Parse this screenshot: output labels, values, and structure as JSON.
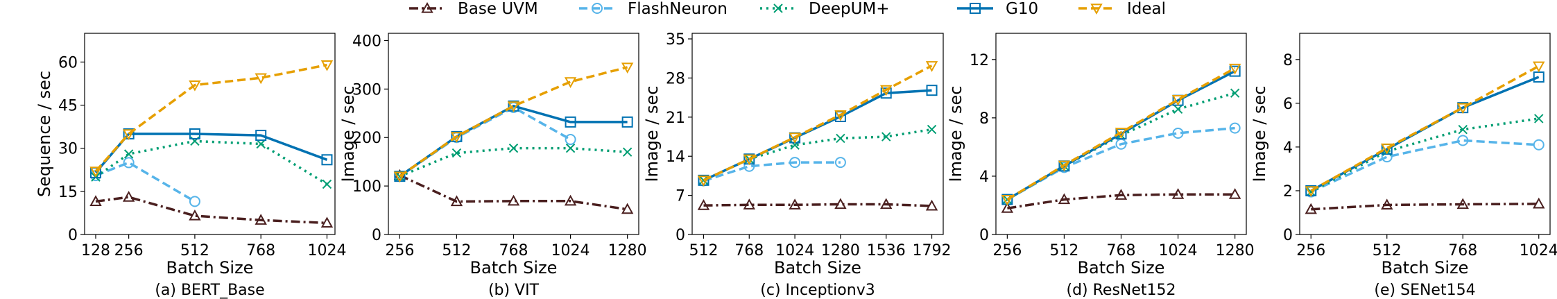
{
  "legend": [
    {
      "name": "Base UVM",
      "color": "#4a1f1f",
      "dash": "dashdot",
      "marker": "triangle-up"
    },
    {
      "name": "FlashNeuron",
      "color": "#56b4e9",
      "dash": "dashed",
      "marker": "circle"
    },
    {
      "name": "DeepUM+",
      "color": "#009e73",
      "dash": "dotted",
      "marker": "x"
    },
    {
      "name": "G10",
      "color": "#0072b2",
      "dash": "solid",
      "marker": "square"
    },
    {
      "name": "Ideal",
      "color": "#e69f00",
      "dash": "dashed",
      "marker": "triangle-down"
    }
  ],
  "chart_data": [
    {
      "type": "line",
      "caption": "(a) BERT_Base",
      "xlabel": "Batch Size",
      "ylabel": "Sequence / sec",
      "xlim": [
        85,
        1055
      ],
      "ylim": [
        0,
        70
      ],
      "xticks": [
        128,
        256,
        512,
        768,
        1024
      ],
      "yticks": [
        0,
        15,
        30,
        45,
        60
      ],
      "grid": false,
      "series": [
        {
          "name": "Base UVM",
          "x": [
            128,
            256,
            512,
            768,
            1024
          ],
          "y": [
            11.5,
            13,
            6.5,
            5,
            4
          ]
        },
        {
          "name": "FlashNeuron",
          "x": [
            128,
            256,
            512
          ],
          "y": [
            20.5,
            25,
            11.5
          ]
        },
        {
          "name": "DeepUM+",
          "x": [
            128,
            256,
            512,
            768,
            1024
          ],
          "y": [
            20,
            28,
            32.5,
            31.5,
            17.5
          ]
        },
        {
          "name": "G10",
          "x": [
            128,
            256,
            512,
            768,
            1024
          ],
          "y": [
            21.5,
            35,
            35,
            34.5,
            26
          ]
        },
        {
          "name": "Ideal",
          "x": [
            128,
            256,
            512,
            768,
            1024
          ],
          "y": [
            22,
            35,
            52,
            54.5,
            59
          ]
        }
      ]
    },
    {
      "type": "line",
      "caption": "(b) VIT",
      "xlabel": "Batch Size",
      "ylabel": "Image / sec",
      "xlim": [
        205,
        1331
      ],
      "ylim": [
        0,
        415
      ],
      "xticks": [
        256,
        512,
        768,
        1024,
        1280
      ],
      "yticks": [
        0,
        100,
        200,
        300,
        400
      ],
      "grid": false,
      "series": [
        {
          "name": "Base UVM",
          "x": [
            256,
            512,
            768,
            1024,
            1280
          ],
          "y": [
            122,
            68,
            69,
            69,
            52
          ]
        },
        {
          "name": "FlashNeuron",
          "x": [
            256,
            512,
            768,
            1024
          ],
          "y": [
            120,
            200,
            262,
            196
          ]
        },
        {
          "name": "DeepUM+",
          "x": [
            256,
            512,
            768,
            1024,
            1280
          ],
          "y": [
            120,
            168,
            178,
            178,
            170
          ]
        },
        {
          "name": "G10",
          "x": [
            256,
            512,
            768,
            1024,
            1280
          ],
          "y": [
            120,
            202,
            265,
            232,
            232
          ]
        },
        {
          "name": "Ideal",
          "x": [
            256,
            512,
            768,
            1024,
            1280
          ],
          "y": [
            120,
            202,
            265,
            315,
            345
          ]
        }
      ]
    },
    {
      "type": "line",
      "caption": "(c) Inceptionv3",
      "xlabel": "Batch Size",
      "ylabel": "Image / sec",
      "xlim": [
        448,
        1856
      ],
      "ylim": [
        0,
        36
      ],
      "xticks": [
        512,
        768,
        1024,
        1280,
        1536,
        1792
      ],
      "yticks": [
        0,
        7,
        14,
        21,
        28,
        35
      ],
      "grid": false,
      "series": [
        {
          "name": "Base UVM",
          "x": [
            512,
            768,
            1024,
            1280,
            1536,
            1792
          ],
          "y": [
            5.2,
            5.3,
            5.3,
            5.4,
            5.4,
            5.1
          ]
        },
        {
          "name": "FlashNeuron",
          "x": [
            512,
            768,
            1024,
            1280
          ],
          "y": [
            9.6,
            12.2,
            12.9,
            12.9
          ]
        },
        {
          "name": "DeepUM+",
          "x": [
            512,
            768,
            1024,
            1280,
            1536,
            1792
          ],
          "y": [
            9.7,
            13.5,
            16,
            17.2,
            17.5,
            18.8
          ]
        },
        {
          "name": "G10",
          "x": [
            512,
            768,
            1024,
            1280,
            1536,
            1792
          ],
          "y": [
            9.7,
            13.5,
            17.3,
            21.1,
            25.3,
            25.8
          ]
        },
        {
          "name": "Ideal",
          "x": [
            512,
            768,
            1024,
            1280,
            1536,
            1792
          ],
          "y": [
            9.7,
            13.5,
            17.4,
            21.4,
            25.9,
            30.2
          ]
        }
      ]
    },
    {
      "type": "line",
      "caption": "(d) ResNet152",
      "xlabel": "Batch Size",
      "ylabel": "Image / sec",
      "xlim": [
        205,
        1331
      ],
      "ylim": [
        0,
        13.8
      ],
      "xticks": [
        256,
        512,
        768,
        1024,
        1280
      ],
      "yticks": [
        0,
        4,
        8,
        12
      ],
      "grid": false,
      "series": [
        {
          "name": "Base UVM",
          "x": [
            256,
            512,
            768,
            1024,
            1280
          ],
          "y": [
            1.8,
            2.4,
            2.7,
            2.75,
            2.75
          ]
        },
        {
          "name": "FlashNeuron",
          "x": [
            256,
            512,
            768,
            1024,
            1280
          ],
          "y": [
            2.4,
            4.6,
            6.2,
            6.95,
            7.3
          ]
        },
        {
          "name": "DeepUM+",
          "x": [
            256,
            512,
            768,
            1024,
            1280
          ],
          "y": [
            2.4,
            4.7,
            6.8,
            8.6,
            9.7
          ]
        },
        {
          "name": "G10",
          "x": [
            256,
            512,
            768,
            1024,
            1280
          ],
          "y": [
            2.4,
            4.7,
            6.9,
            9.2,
            11.2
          ]
        },
        {
          "name": "Ideal",
          "x": [
            256,
            512,
            768,
            1024,
            1280
          ],
          "y": [
            2.4,
            4.75,
            7.0,
            9.25,
            11.4
          ]
        }
      ]
    },
    {
      "type": "line",
      "caption": "(e) SENet154",
      "xlabel": "Batch Size",
      "ylabel": "Image / sec",
      "xlim": [
        218,
        1062
      ],
      "ylim": [
        0,
        9.2
      ],
      "xticks": [
        256,
        512,
        768,
        1024
      ],
      "yticks": [
        0,
        2,
        4,
        6,
        8
      ],
      "grid": false,
      "series": [
        {
          "name": "Base UVM",
          "x": [
            256,
            512,
            768,
            1024
          ],
          "y": [
            1.15,
            1.35,
            1.38,
            1.4
          ]
        },
        {
          "name": "FlashNeuron",
          "x": [
            256,
            512,
            768,
            1024
          ],
          "y": [
            1.95,
            3.55,
            4.3,
            4.1
          ]
        },
        {
          "name": "DeepUM+",
          "x": [
            256,
            512,
            768,
            1024
          ],
          "y": [
            1.95,
            3.8,
            4.8,
            5.3
          ]
        },
        {
          "name": "G10",
          "x": [
            256,
            512,
            768,
            1024
          ],
          "y": [
            2.0,
            3.9,
            5.8,
            7.2
          ]
        },
        {
          "name": "Ideal",
          "x": [
            256,
            512,
            768,
            1024
          ],
          "y": [
            2.0,
            3.95,
            5.8,
            7.7
          ]
        }
      ]
    }
  ]
}
